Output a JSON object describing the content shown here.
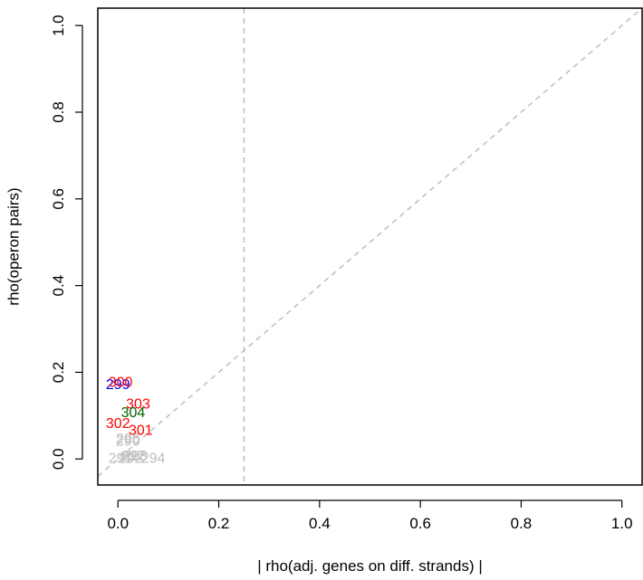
{
  "chart_data": {
    "type": "scatter",
    "xlabel": "| rho(adj. genes on diff. strands) |",
    "ylabel": "rho(operon pairs)",
    "xlim": [
      -0.04,
      1.04
    ],
    "ylim": [
      -0.06,
      1.04
    ],
    "x_ticks": [
      "0.0",
      "0.2",
      "0.4",
      "0.6",
      "0.8",
      "1.0"
    ],
    "y_ticks": [
      "0.0",
      "0.2",
      "0.4",
      "0.6",
      "0.8",
      "1.0"
    ],
    "x_tick_values": [
      0,
      0.2,
      0.4,
      0.6,
      0.8,
      1.0
    ],
    "y_tick_values": [
      0,
      0.2,
      0.4,
      0.6,
      0.8,
      1.0
    ],
    "reference_lines": {
      "vertical_x": 0.25,
      "diagonal": "y = x",
      "style": "dashed",
      "color": "#bebebe"
    },
    "points": [
      {
        "label": "299",
        "x": 0.0,
        "y": 0.17,
        "color": "#0000ff"
      },
      {
        "label": "300",
        "x": 0.005,
        "y": 0.175,
        "color": "#ff0000"
      },
      {
        "label": "303",
        "x": 0.04,
        "y": 0.125,
        "color": "#ff0000"
      },
      {
        "label": "304",
        "x": 0.03,
        "y": 0.105,
        "color": "#006400"
      },
      {
        "label": "302",
        "x": 0.0,
        "y": 0.08,
        "color": "#ff0000"
      },
      {
        "label": "301",
        "x": 0.045,
        "y": 0.065,
        "color": "#ff0000"
      },
      {
        "label": "296",
        "x": 0.02,
        "y": 0.045,
        "color": "#bebebe"
      },
      {
        "label": "290",
        "x": 0.02,
        "y": 0.04,
        "color": "#bebebe"
      },
      {
        "label": "293",
        "x": 0.035,
        "y": 0.005,
        "color": "#bebebe"
      },
      {
        "label": "297",
        "x": 0.03,
        "y": 0.005,
        "color": "#bebebe"
      },
      {
        "label": "291",
        "x": 0.005,
        "y": 0.0,
        "color": "#bebebe"
      },
      {
        "label": "292",
        "x": 0.025,
        "y": 0.0,
        "color": "#bebebe"
      },
      {
        "label": "294",
        "x": 0.07,
        "y": 0.0,
        "color": "#bebebe"
      }
    ]
  }
}
